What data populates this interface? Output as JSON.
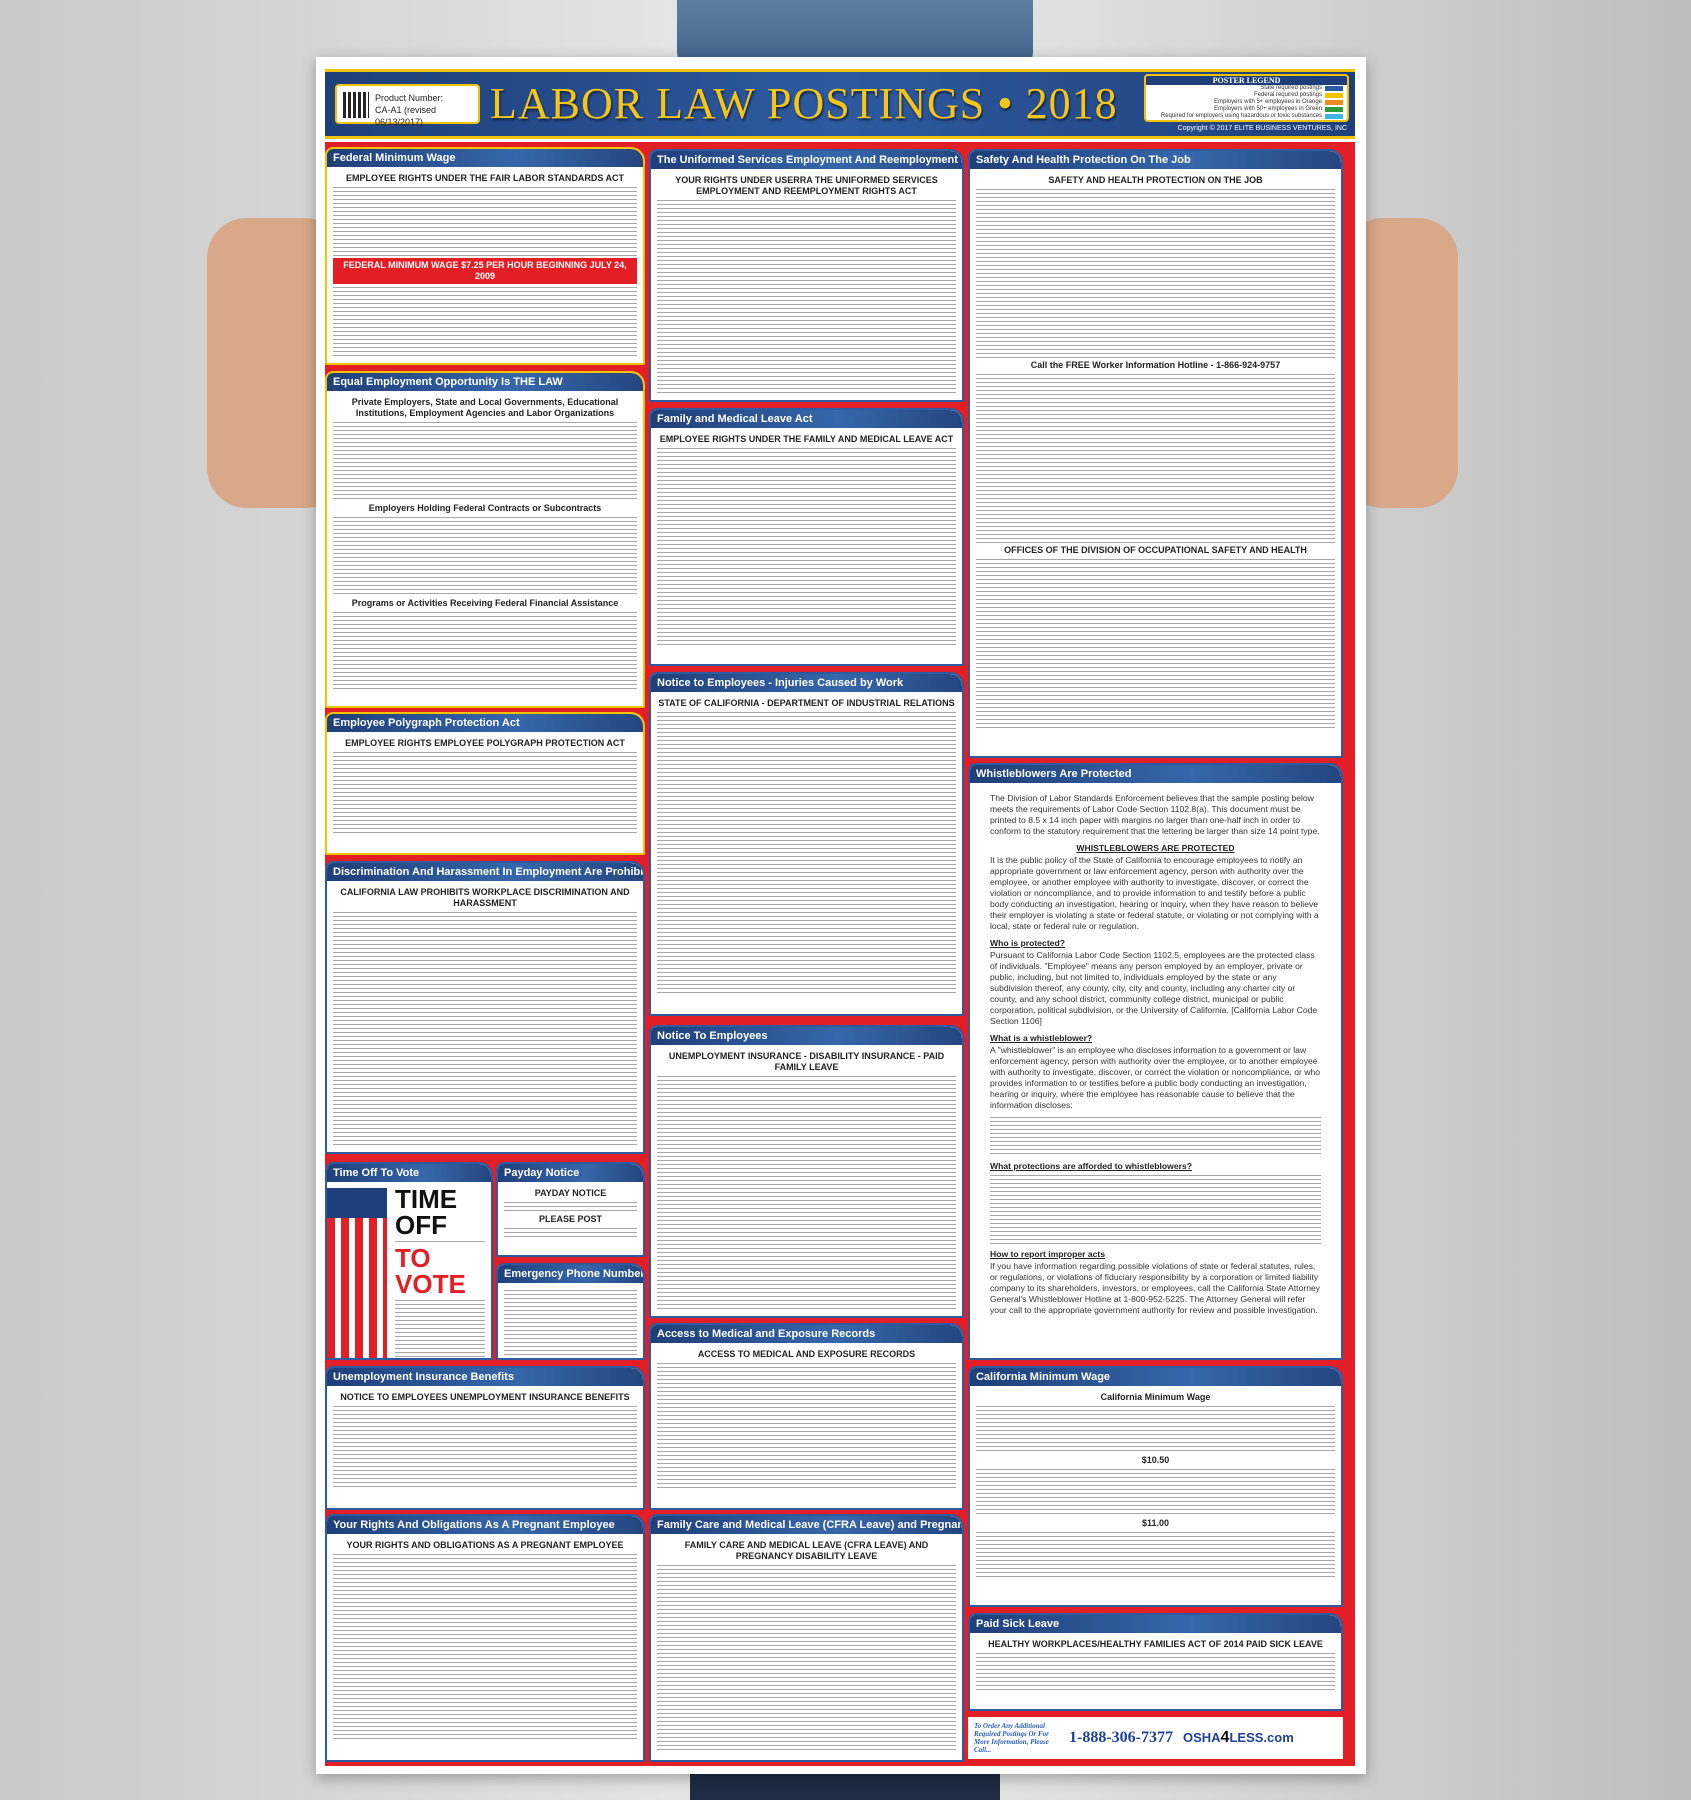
{
  "header": {
    "product_label": "Product Number:",
    "product_number": "CA-A1 (revised 06/13/2017)",
    "title": "LABOR LAW POSTINGS • 2018",
    "legend_title": "POSTER LEGEND",
    "legend_items": [
      {
        "label": "State required postings",
        "color": "#2d5aa0"
      },
      {
        "label": "Federal required postings",
        "color": "#f2c200"
      },
      {
        "label": "Employers with 5+ employees in Orange",
        "color": "#f08a1c"
      },
      {
        "label": "Employers with 50+ employees in Green",
        "color": "#2e9a3a"
      },
      {
        "label": "Required for employers using hazardous or toxic substances",
        "color": "#3fb2e8"
      }
    ],
    "copyright": "Copyright © 2017 ELITE BUSINESS VENTURES, INC"
  },
  "sections": [
    {
      "id": "fmw",
      "title": "Federal Minimum Wage",
      "lines": [
        "EMPLOYEE RIGHTS UNDER THE FAIR LABOR STANDARDS ACT",
        "FEDERAL MINIMUM WAGE $7.25 PER HOUR BEGINNING JULY 24, 2009"
      ]
    },
    {
      "id": "eeo",
      "title": "Equal Employment Opportunity Is THE LAW",
      "lines": [
        "Private Employers, State and Local Governments, Educational Institutions, Employment Agencies and Labor Organizations",
        "Employers Holding Federal Contracts or Subcontracts",
        "Programs or Activities Receiving Federal Financial Assistance"
      ]
    },
    {
      "id": "poly",
      "title": "Employee Polygraph Protection Act",
      "lines": [
        "EMPLOYEE RIGHTS EMPLOYEE POLYGRAPH PROTECTION ACT"
      ]
    },
    {
      "id": "disc",
      "title": "Discrimination And Harassment In Employment Are Prohibited By Law",
      "lines": [
        "CALIFORNIA LAW PROHIBITS WORKPLACE DISCRIMINATION AND HARASSMENT"
      ]
    },
    {
      "id": "vote",
      "title": "Time Off To Vote",
      "lines": [
        "TIME OFF",
        "TO VOTE"
      ]
    },
    {
      "id": "payday",
      "title": "Payday Notice",
      "lines": [
        "PAYDAY NOTICE",
        "PLEASE POST"
      ]
    },
    {
      "id": "emerg",
      "title": "Emergency Phone Numbers",
      "lines": []
    },
    {
      "id": "unemp",
      "title": "Unemployment Insurance Benefits",
      "lines": [
        "NOTICE TO EMPLOYEES UNEMPLOYMENT INSURANCE BENEFITS"
      ]
    },
    {
      "id": "preg",
      "title": "Your Rights And Obligations As A Pregnant Employee",
      "lines": [
        "YOUR RIGHTS AND OBLIGATIONS AS A PREGNANT EMPLOYEE"
      ]
    },
    {
      "id": "userra",
      "title": "The Uniformed Services Employment And Reemployment Rights Act",
      "lines": [
        "YOUR RIGHTS UNDER USERRA THE UNIFORMED SERVICES EMPLOYMENT AND REEMPLOYMENT RIGHTS ACT"
      ]
    },
    {
      "id": "fmla",
      "title": "Family and Medical Leave Act",
      "lines": [
        "EMPLOYEE RIGHTS UNDER THE FAMILY AND MEDICAL LEAVE ACT"
      ]
    },
    {
      "id": "inj",
      "title": "Notice to Employees - Injuries Caused by Work",
      "lines": [
        "STATE OF CALIFORNIA - DEPARTMENT OF INDUSTRIAL RELATIONS"
      ]
    },
    {
      "id": "notice",
      "title": "Notice To Employees",
      "lines": [
        "UNEMPLOYMENT INSURANCE - DISABILITY INSURANCE - PAID FAMILY LEAVE"
      ]
    },
    {
      "id": "access",
      "title": "Access to Medical and Exposure Records",
      "lines": [
        "ACCESS TO MEDICAL AND EXPOSURE RECORDS"
      ]
    },
    {
      "id": "cfra",
      "title": "Family Care and Medical Leave (CFRA Leave) and Pregnancy Disability Leave",
      "lines": [
        "FAMILY CARE AND MEDICAL LEAVE (CFRA LEAVE) AND PREGNANCY DISABILITY LEAVE"
      ]
    },
    {
      "id": "safety",
      "title": "Safety And Health Protection On The Job",
      "lines": [
        "SAFETY AND HEALTH PROTECTION ON THE JOB",
        "Call the FREE Worker Information Hotline - 1-866-924-9757",
        "OFFICES OF THE DIVISION OF OCCUPATIONAL SAFETY AND HEALTH"
      ]
    },
    {
      "id": "cmw",
      "title": "California Minimum Wage",
      "lines": [
        "California Minimum Wage",
        "$10.50",
        "$11.00"
      ]
    },
    {
      "id": "sick",
      "title": "Paid Sick Leave",
      "lines": [
        "HEALTHY WORKPLACES/HEALTHY FAMILIES ACT OF 2014 PAID SICK LEAVE"
      ]
    }
  ],
  "whistleblower": {
    "title": "Whistleblowers Are Protected",
    "intro": "The Division of Labor Standards Enforcement believes that the sample posting below meets the requirements of Labor Code Section 1102.8(a). This document must be printed to 8.5 x 14 inch paper with margins no larger than one-half inch in order to conform to the statutory requirement that the lettering be larger than size 14 point type.",
    "heading": "WHISTLEBLOWERS ARE PROTECTED",
    "policy": "It is the public policy of the State of California to encourage employees to notify an appropriate government or law enforcement agency, person with authority over the employee, or another employee with authority to investigate, discover, or correct the violation or noncompliance, and to provide information to and testify before a public body conducting an investigation, hearing or inquiry, when they have reason to believe their employer is violating a state or federal statute, or violating or not complying with a local, state or federal rule or regulation.",
    "q1": "Who is protected?",
    "a1": "Pursuant to California Labor Code Section 1102.5, employees are the protected class of individuals. \"Employee\" means any person employed by an employer, private or public, including, but not limited to, individuals employed by the state or any subdivision thereof, any county, city, city and county, including any charter city or county, and any school district, community college district, municipal or public corporation, political subdivision, or the University of California. [California Labor Code Section 1106]",
    "q2": "What is a whistleblower?",
    "a2": "A \"whistleblower\" is an employee who discloses information to a government or law enforcement agency, person with authority over the employee, or to another employee with authority to investigate, discover, or correct the violation or noncompliance, or who provides information to or testifies before a public body conducting an investigation, hearing or inquiry, where the employee has reasonable cause to believe that the information discloses:",
    "q3": "What protections are afforded to whistleblowers?",
    "q4": "How to report improper acts",
    "a4": "If you have information regarding possible violations of state or federal statutes, rules, or regulations, or violations of fiduciary responsibility by a corporation or limited liability company to its shareholders, investors, or employees, call the California State Attorney General's Whistleblower Hotline at 1-800-952-5225. The Attorney General will refer your call to the appropriate government authority for review and possible investigation."
  },
  "footer": {
    "order_text": "To Order Any Additional Required Postings Or For More Information, Please Call...",
    "phone": "1-888-306-7377",
    "logo_pre": "OSHA",
    "logo_num": "4",
    "logo_post": "LESS.com"
  }
}
